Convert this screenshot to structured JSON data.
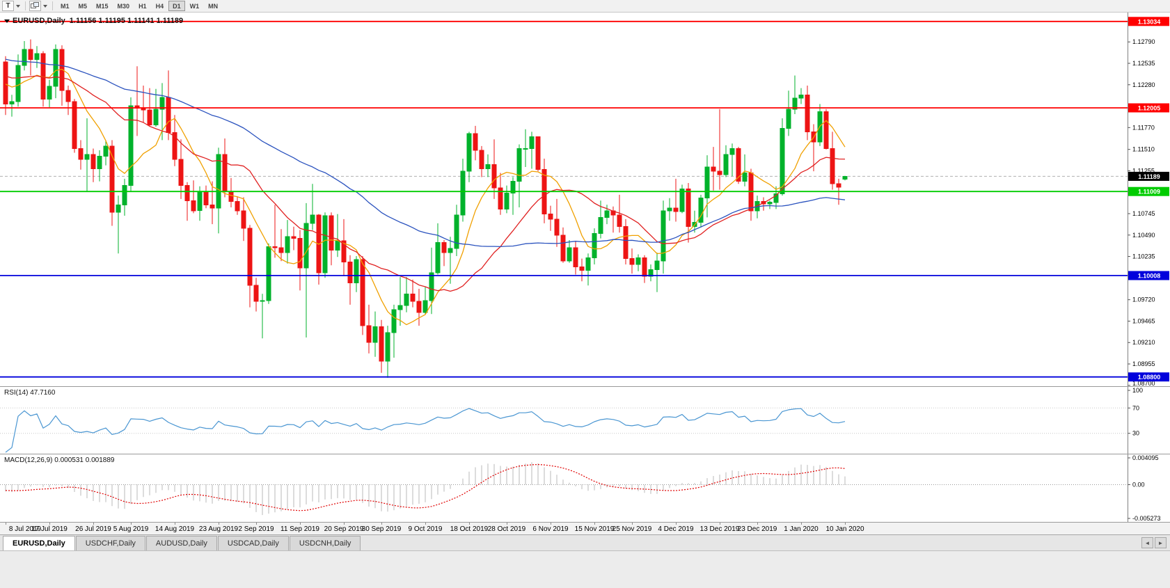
{
  "toolbar": {
    "tool_button": "T",
    "timeframes": [
      "M1",
      "M5",
      "M15",
      "M30",
      "H1",
      "H4",
      "D1",
      "W1",
      "MN"
    ],
    "active_timeframe": "D1"
  },
  "chart": {
    "title": "EURUSD,Daily",
    "ohlc": "1.11156 1.11195 1.11141 1.11189"
  },
  "tabs": [
    {
      "label": "EURUSD,Daily",
      "active": true
    },
    {
      "label": "USDCHF,Daily",
      "active": false
    },
    {
      "label": "AUDUSD,Daily",
      "active": false
    },
    {
      "label": "USDCAD,Daily",
      "active": false
    },
    {
      "label": "USDCNH,Daily",
      "active": false
    }
  ],
  "tab_arrows": {
    "left": "◄",
    "right": "►"
  },
  "chart_data": {
    "type": "candlestick",
    "symbol": "EURUSD",
    "timeframe": "Daily",
    "last_ohlc": {
      "open": 1.11156,
      "high": 1.11195,
      "low": 1.11141,
      "close": 1.11189
    },
    "up_color": "#00B22B",
    "down_color": "#ED1414",
    "price_range": {
      "top": 1.1314,
      "bottom": 1.0869
    },
    "current_price": {
      "value": 1.11189,
      "label": "1.11189"
    },
    "horizontal_lines": [
      {
        "price": 1.13034,
        "color": "#FF0000",
        "label": "1.13034"
      },
      {
        "price": 1.12005,
        "color": "#FF0000",
        "label": "1.12005"
      },
      {
        "price": 1.11009,
        "color": "#00CC00",
        "label": "1.11009"
      },
      {
        "price": 1.10008,
        "color": "#0000DC",
        "label": "1.10008"
      },
      {
        "price": 1.088,
        "color": "#0000DC",
        "label": "1.08800"
      }
    ],
    "y_axis_ticks": [
      "1.12790",
      "1.12535",
      "1.12280",
      "1.11770",
      "1.11510",
      "1.11255",
      "1.10745",
      "1.10490",
      "1.10235",
      "1.09720",
      "1.09465",
      "1.09210",
      "1.08955",
      "1.08700"
    ],
    "moving_averages": [
      {
        "period": 8,
        "color": "#F0A000",
        "name": "fast-ma-orange"
      },
      {
        "period": 20,
        "color": "#E02020",
        "name": "medium-ma-red"
      },
      {
        "period": 50,
        "color": "#2A52BE",
        "name": "slow-ma-blue"
      }
    ],
    "candles": [
      [
        1.1255,
        1.1262,
        1.1192,
        1.1205
      ],
      [
        1.1205,
        1.1216,
        1.119,
        1.1208
      ],
      [
        1.1208,
        1.1264,
        1.1202,
        1.1251
      ],
      [
        1.1251,
        1.128,
        1.1245,
        1.127
      ],
      [
        1.127,
        1.1282,
        1.1239,
        1.1258
      ],
      [
        1.1258,
        1.1274,
        1.1248,
        1.1265
      ],
      [
        1.1265,
        1.1268,
        1.1202,
        1.1211
      ],
      [
        1.1211,
        1.1234,
        1.1201,
        1.1226
      ],
      [
        1.1226,
        1.1276,
        1.1212,
        1.127
      ],
      [
        1.127,
        1.1275,
        1.1203,
        1.1221
      ],
      [
        1.1221,
        1.1227,
        1.1192,
        1.1208
      ],
      [
        1.1208,
        1.1211,
        1.1147,
        1.1152
      ],
      [
        1.1152,
        1.1162,
        1.1127,
        1.1139
      ],
      [
        1.1139,
        1.1188,
        1.1101,
        1.1145
      ],
      [
        1.1145,
        1.1152,
        1.1112,
        1.1128
      ],
      [
        1.1128,
        1.115,
        1.1113,
        1.1143
      ],
      [
        1.1143,
        1.1162,
        1.1132,
        1.1155
      ],
      [
        1.1155,
        1.1162,
        1.106,
        1.1076
      ],
      [
        1.1076,
        1.1096,
        1.1027,
        1.1085
      ],
      [
        1.1085,
        1.1116,
        1.1072,
        1.1108
      ],
      [
        1.1108,
        1.1213,
        1.1101,
        1.1203
      ],
      [
        1.1203,
        1.125,
        1.1167,
        1.12
      ],
      [
        1.12,
        1.1227,
        1.1183,
        1.1198
      ],
      [
        1.1198,
        1.1224,
        1.1178,
        1.118
      ],
      [
        1.118,
        1.1223,
        1.1178,
        1.1199
      ],
      [
        1.1199,
        1.123,
        1.1162,
        1.1213
      ],
      [
        1.1213,
        1.1245,
        1.1162,
        1.1171
      ],
      [
        1.1171,
        1.1192,
        1.1131,
        1.1139
      ],
      [
        1.1139,
        1.1163,
        1.1092,
        1.1108
      ],
      [
        1.1108,
        1.1112,
        1.1066,
        1.109
      ],
      [
        1.109,
        1.1114,
        1.1075,
        1.1078
      ],
      [
        1.1078,
        1.1107,
        1.1066,
        1.11
      ],
      [
        1.11,
        1.1108,
        1.1081,
        1.1085
      ],
      [
        1.1085,
        1.1113,
        1.1062,
        1.1081
      ],
      [
        1.1081,
        1.1153,
        1.1051,
        1.1145
      ],
      [
        1.1145,
        1.1164,
        1.1094,
        1.1101
      ],
      [
        1.1101,
        1.1117,
        1.1082,
        1.1089
      ],
      [
        1.1089,
        1.1095,
        1.1073,
        1.1078
      ],
      [
        1.1078,
        1.1094,
        1.1042,
        1.1057
      ],
      [
        1.1057,
        1.1061,
        1.0963,
        1.0989
      ],
      [
        1.0989,
        1.0998,
        1.0958,
        1.097
      ],
      [
        1.097,
        1.0979,
        1.0926,
        1.0971
      ],
      [
        1.0971,
        1.1039,
        1.0967,
        1.1035
      ],
      [
        1.1035,
        1.1085,
        1.1022,
        1.1034
      ],
      [
        1.1034,
        1.1056,
        1.1018,
        1.1028
      ],
      [
        1.1028,
        1.1067,
        1.1015,
        1.1047
      ],
      [
        1.1047,
        1.1059,
        1.1031,
        1.1045
      ],
      [
        1.1045,
        1.1055,
        1.0983,
        1.101
      ],
      [
        1.101,
        1.1087,
        1.0927,
        1.1063
      ],
      [
        1.1063,
        1.111,
        1.1055,
        1.1073
      ],
      [
        1.1073,
        1.1074,
        1.099,
        1.1004
      ],
      [
        1.1004,
        1.1076,
        1.0998,
        1.1072
      ],
      [
        1.1072,
        1.1076,
        1.1013,
        1.1031
      ],
      [
        1.1031,
        1.1074,
        1.1023,
        1.1042
      ],
      [
        1.1042,
        1.1068,
        1.1,
        1.1017
      ],
      [
        1.1017,
        1.1025,
        1.0966,
        1.0992
      ],
      [
        1.0992,
        1.1024,
        1.0981,
        1.102
      ],
      [
        1.102,
        1.1024,
        1.093,
        1.0941
      ],
      [
        1.0941,
        1.0966,
        1.0908,
        1.0921
      ],
      [
        1.0921,
        1.0958,
        1.0904,
        1.094
      ],
      [
        1.094,
        1.0948,
        1.0885,
        1.0899
      ],
      [
        1.0899,
        1.0941,
        1.0879,
        1.0933
      ],
      [
        1.0933,
        1.0966,
        1.0903,
        1.096
      ],
      [
        1.096,
        1.0999,
        1.0941,
        1.0965
      ],
      [
        1.0965,
        1.0999,
        1.0957,
        1.0979
      ],
      [
        1.0979,
        1.0996,
        1.0963,
        1.097
      ],
      [
        1.097,
        1.0985,
        1.0941,
        1.0957
      ],
      [
        1.0957,
        1.0987,
        1.0955,
        1.0971
      ],
      [
        1.0971,
        1.1034,
        1.0955,
        1.1004
      ],
      [
        1.1004,
        1.1063,
        1.1002,
        1.104
      ],
      [
        1.104,
        1.1043,
        1.1012,
        1.1028
      ],
      [
        1.1028,
        1.1047,
        1.0991,
        1.1033
      ],
      [
        1.1033,
        1.1085,
        1.1024,
        1.1073
      ],
      [
        1.1073,
        1.114,
        1.1065,
        1.1125
      ],
      [
        1.1125,
        1.1172,
        1.1112,
        1.117
      ],
      [
        1.117,
        1.1179,
        1.1138,
        1.115
      ],
      [
        1.115,
        1.1155,
        1.1118,
        1.1128
      ],
      [
        1.1128,
        1.1145,
        1.1118,
        1.1133
      ],
      [
        1.1133,
        1.1163,
        1.1092,
        1.1105
      ],
      [
        1.1105,
        1.1123,
        1.1073,
        1.108
      ],
      [
        1.108,
        1.1108,
        1.1075,
        1.1099
      ],
      [
        1.1099,
        1.1118,
        1.1073,
        1.1113
      ],
      [
        1.1113,
        1.1157,
        1.1082,
        1.1152
      ],
      [
        1.1152,
        1.1175,
        1.113,
        1.1152
      ],
      [
        1.1152,
        1.1172,
        1.1128,
        1.1166
      ],
      [
        1.1166,
        1.1166,
        1.1125,
        1.1127
      ],
      [
        1.1127,
        1.114,
        1.1063,
        1.1074
      ],
      [
        1.1074,
        1.1084,
        1.1054,
        1.1068
      ],
      [
        1.1068,
        1.1092,
        1.1035,
        1.1049
      ],
      [
        1.1049,
        1.1058,
        1.1016,
        1.1018
      ],
      [
        1.1018,
        1.1043,
        1.1016,
        1.1034
      ],
      [
        1.1034,
        1.1042,
        1.1002,
        1.1011
      ],
      [
        1.1011,
        1.1021,
        1.0994,
        1.1007
      ],
      [
        1.1007,
        1.1027,
        1.0989,
        1.1022
      ],
      [
        1.1022,
        1.1057,
        1.1014,
        1.1051
      ],
      [
        1.1051,
        1.109,
        1.1045,
        1.107
      ],
      [
        1.107,
        1.1085,
        1.1062,
        1.1078
      ],
      [
        1.1078,
        1.1083,
        1.1052,
        1.1073
      ],
      [
        1.1073,
        1.1097,
        1.1052,
        1.1059
      ],
      [
        1.1059,
        1.1068,
        1.1014,
        1.1021
      ],
      [
        1.1021,
        1.1033,
        1.1003,
        1.1014
      ],
      [
        1.1014,
        1.1026,
        1.1006,
        1.1022
      ],
      [
        1.1022,
        1.1025,
        1.0992,
        1.1
      ],
      [
        1.1,
        1.1014,
        1.0994,
        1.1008
      ],
      [
        1.1008,
        1.1028,
        1.0981,
        1.1018
      ],
      [
        1.1018,
        1.109,
        1.1003,
        1.1078
      ],
      [
        1.1078,
        1.1093,
        1.1066,
        1.1081
      ],
      [
        1.1081,
        1.1116,
        1.1065,
        1.1077
      ],
      [
        1.1077,
        1.1109,
        1.1075,
        1.1104
      ],
      [
        1.1104,
        1.1111,
        1.104,
        1.1059
      ],
      [
        1.1059,
        1.1078,
        1.1052,
        1.1064
      ],
      [
        1.1064,
        1.1097,
        1.1058,
        1.1093
      ],
      [
        1.1093,
        1.1144,
        1.107,
        1.113
      ],
      [
        1.113,
        1.1154,
        1.1102,
        1.1125
      ],
      [
        1.1125,
        1.1199,
        1.1103,
        1.1121
      ],
      [
        1.1121,
        1.1156,
        1.1118,
        1.1145
      ],
      [
        1.1145,
        1.1158,
        1.1119,
        1.1152
      ],
      [
        1.1152,
        1.1154,
        1.111,
        1.1113
      ],
      [
        1.1113,
        1.1145,
        1.1107,
        1.1123
      ],
      [
        1.1123,
        1.1128,
        1.1066,
        1.1078
      ],
      [
        1.1078,
        1.1096,
        1.1069,
        1.1089
      ],
      [
        1.1089,
        1.1094,
        1.1078,
        1.1086
      ],
      [
        1.1086,
        1.109,
        1.108,
        1.1088
      ],
      [
        1.1088,
        1.1107,
        1.108,
        1.1098
      ],
      [
        1.1098,
        1.1188,
        1.1096,
        1.1176
      ],
      [
        1.1176,
        1.1221,
        1.1167,
        1.1199
      ],
      [
        1.1199,
        1.1239,
        1.1193,
        1.1212
      ],
      [
        1.1212,
        1.1224,
        1.1205,
        1.1216
      ],
      [
        1.1216,
        1.1227,
        1.1162,
        1.1172
      ],
      [
        1.1172,
        1.1181,
        1.1125,
        1.116
      ],
      [
        1.116,
        1.1205,
        1.1155,
        1.1196
      ],
      [
        1.1196,
        1.1199,
        1.1151,
        1.1152
      ],
      [
        1.1152,
        1.1172,
        1.1103,
        1.111
      ],
      [
        1.111,
        1.1116,
        1.1085,
        1.1106
      ],
      [
        1.11156,
        1.11195,
        1.11141,
        1.11189
      ]
    ],
    "time_labels": [
      {
        "i": 0,
        "t": "8 Jul 2019"
      },
      {
        "i": 7,
        "t": "17 Jul 2019"
      },
      {
        "i": 14,
        "t": "26 Jul 2019"
      },
      {
        "i": 20,
        "t": "5 Aug 2019"
      },
      {
        "i": 27,
        "t": "14 Aug 2019"
      },
      {
        "i": 34,
        "t": "23 Aug 2019"
      },
      {
        "i": 40,
        "t": "2 Sep 2019"
      },
      {
        "i": 47,
        "t": "11 Sep 2019"
      },
      {
        "i": 54,
        "t": "20 Sep 2019"
      },
      {
        "i": 60,
        "t": "30 Sep 2019"
      },
      {
        "i": 67,
        "t": "9 Oct 2019"
      },
      {
        "i": 74,
        "t": "18 Oct 2019"
      },
      {
        "i": 80,
        "t": "28 Oct 2019"
      },
      {
        "i": 87,
        "t": "6 Nov 2019"
      },
      {
        "i": 94,
        "t": "15 Nov 2019"
      },
      {
        "i": 100,
        "t": "25 Nov 2019"
      },
      {
        "i": 107,
        "t": "4 Dec 2019"
      },
      {
        "i": 114,
        "t": "13 Dec 2019"
      },
      {
        "i": 120,
        "t": "23 Dec 2019"
      },
      {
        "i": 127,
        "t": "1 Jan 2020"
      },
      {
        "i": 134,
        "t": "10 Jan 2020"
      }
    ],
    "rsi": {
      "label": "RSI(14) 47.7160",
      "period": 14,
      "current": 47.716,
      "levels": [
        70,
        30
      ],
      "axis_ticks": [
        "100",
        "70",
        "30"
      ],
      "color": "#4A96D2"
    },
    "macd": {
      "label": "MACD(12,26,9) 0.000531 0.001889",
      "fast": 12,
      "slow": 26,
      "signal": 9,
      "values": {
        "macd": 0.000531,
        "signal": 0.001889
      },
      "range": {
        "max": 0.004095,
        "min": -0.005273
      },
      "axis_ticks": [
        "0.004095",
        "0.00",
        "-0.005273"
      ],
      "histogram_color": "#B8B8B8",
      "signal_color": "#E00000"
    }
  }
}
